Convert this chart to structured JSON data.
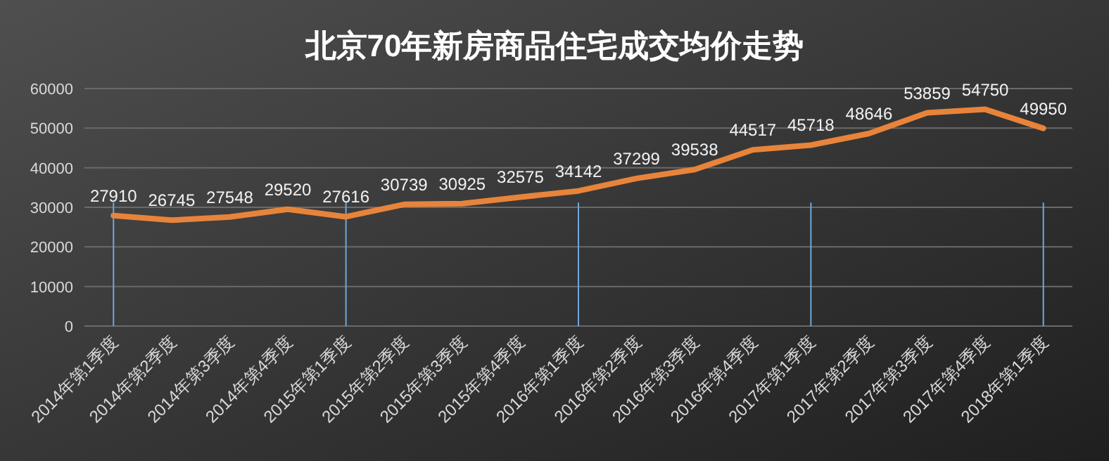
{
  "chart_data": {
    "type": "line",
    "title": "北京70年新房商品住宅成交均价走势",
    "categories": [
      "2014年第1季度",
      "2014年第2季度",
      "2014年第3季度",
      "2014年第4季度",
      "2015年第1季度",
      "2015年第2季度",
      "2015年第3季度",
      "2015年第4季度",
      "2016年第1季度",
      "2016年第2季度",
      "2016年第3季度",
      "2016年第4季度",
      "2017年第1季度",
      "2017年第2季度",
      "2017年第3季度",
      "2017年第4季度",
      "2018年第1季度"
    ],
    "series": [
      {
        "color": "#e8843a",
        "values": [
          27910,
          26745,
          27548,
          29520,
          27616,
          30739,
          30925,
          32575,
          34142,
          37299,
          39538,
          44517,
          45718,
          48646,
          53859,
          54750,
          49950
        ]
      }
    ],
    "data_labels": true,
    "ylim": [
      0,
      60000
    ],
    "yticks": [
      0,
      10000,
      20000,
      30000,
      40000,
      50000,
      60000
    ],
    "grid": "y",
    "marker": "none",
    "line_style": "solid",
    "ref_lines": [
      {
        "axis": "x",
        "value": "2014年第1季度",
        "color": "#6fa8dc"
      },
      {
        "axis": "x",
        "value": "2015年第1季度",
        "color": "#6fa8dc"
      },
      {
        "axis": "x",
        "value": "2016年第1季度",
        "color": "#6fa8dc"
      },
      {
        "axis": "x",
        "value": "2017年第1季度",
        "color": "#6fa8dc"
      },
      {
        "axis": "x",
        "value": "2018年第1季度",
        "color": "#6fa8dc"
      }
    ]
  }
}
